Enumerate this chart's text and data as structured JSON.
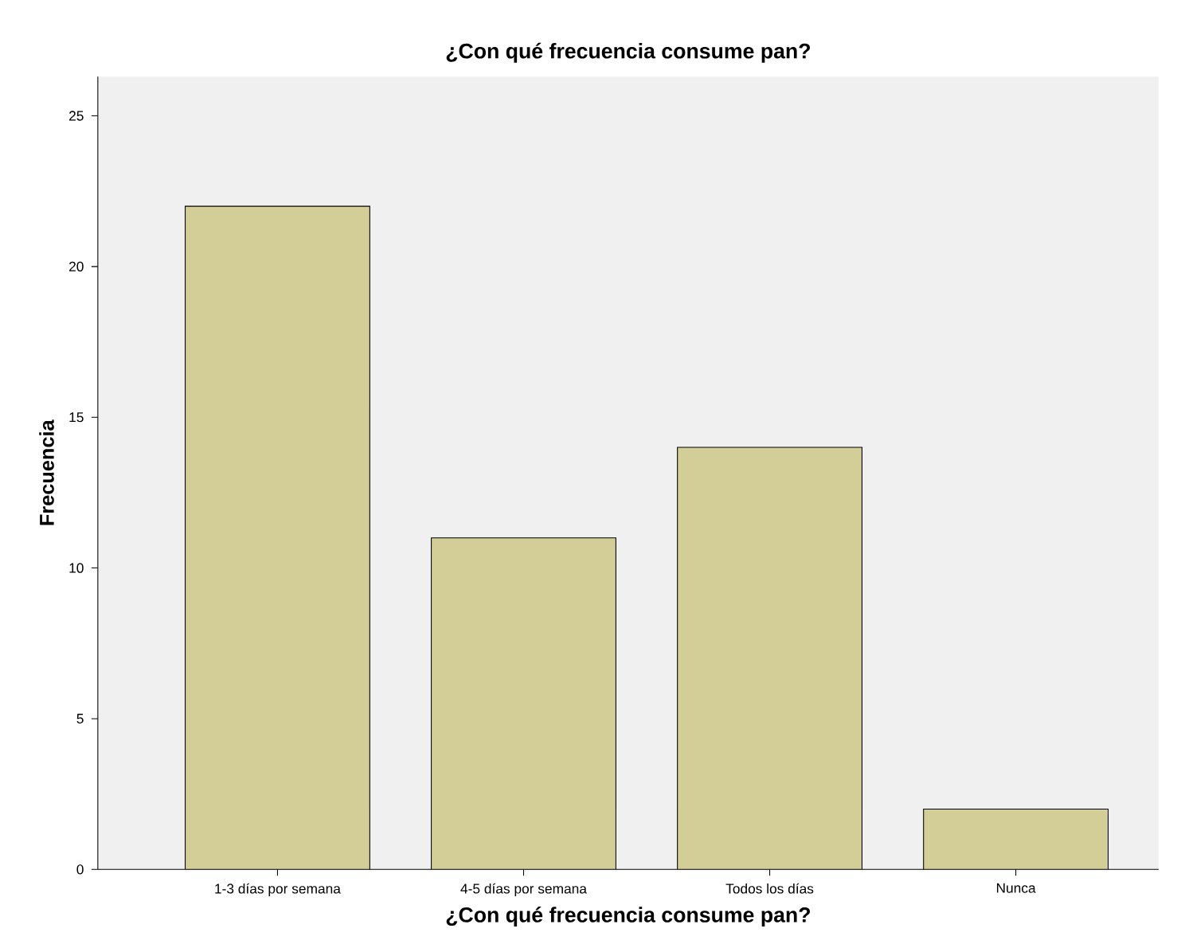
{
  "chart_data": {
    "type": "bar",
    "title": "¿Con qué frecuencia consume pan?",
    "xlabel": "¿Con qué frecuencia consume pan?",
    "ylabel": "Frecuencia",
    "categories": [
      "1-3 días por semana",
      "4-5 días por semana",
      "Todos los días",
      "Nunca"
    ],
    "values": [
      22,
      11,
      14,
      2
    ],
    "color": "#d3ce97",
    "ylim": [
      0,
      26.3
    ],
    "yticks": [
      0,
      5,
      10,
      15,
      20,
      25
    ],
    "grid": false
  }
}
